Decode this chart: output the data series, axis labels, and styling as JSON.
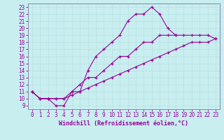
{
  "xlabel": "Windchill (Refroidissement éolien,°C)",
  "bg_color": "#c8eef0",
  "grid_color": "#b8dfe1",
  "line_color": "#990099",
  "spine_color": "#8888aa",
  "xlim": [
    -0.5,
    23.5
  ],
  "ylim": [
    8.5,
    23.5
  ],
  "xticks": [
    0,
    1,
    2,
    3,
    4,
    5,
    6,
    7,
    8,
    9,
    10,
    11,
    12,
    13,
    14,
    15,
    16,
    17,
    18,
    19,
    20,
    21,
    22,
    23
  ],
  "yticks": [
    9,
    10,
    11,
    12,
    13,
    14,
    15,
    16,
    17,
    18,
    19,
    20,
    21,
    22,
    23
  ],
  "line1_x": [
    0,
    1,
    2,
    3,
    4,
    5,
    6,
    7,
    8,
    9,
    10,
    11,
    12,
    13,
    14,
    15,
    16,
    17,
    18
  ],
  "line1_y": [
    11,
    10,
    10,
    9,
    9,
    11,
    11,
    14,
    16,
    17,
    18,
    19,
    21,
    22,
    22,
    23,
    22,
    20,
    19
  ],
  "line2_x": [
    0,
    1,
    2,
    3,
    4,
    5,
    6,
    7,
    8,
    9,
    10,
    11,
    12,
    13,
    14,
    15,
    16,
    17,
    18,
    19,
    20,
    21,
    22,
    23
  ],
  "line2_y": [
    11,
    10,
    10,
    10,
    10,
    11,
    12,
    13,
    13,
    14,
    15,
    16,
    16,
    17,
    18,
    18,
    19,
    19,
    19,
    19,
    19,
    19,
    19,
    18.5
  ],
  "line3_x": [
    0,
    1,
    2,
    3,
    4,
    5,
    6,
    7,
    8,
    9,
    10,
    11,
    12,
    13,
    14,
    15,
    16,
    17,
    18,
    19,
    20,
    21,
    22,
    23
  ],
  "line3_y": [
    11,
    10,
    10,
    10,
    10,
    10.5,
    11,
    11.5,
    12,
    12.5,
    13,
    13.5,
    14,
    14.5,
    15,
    15.5,
    16,
    16.5,
    17,
    17.5,
    18,
    18,
    18,
    18.5
  ],
  "tick_fontsize": 5.5,
  "xlabel_fontsize": 6.0
}
